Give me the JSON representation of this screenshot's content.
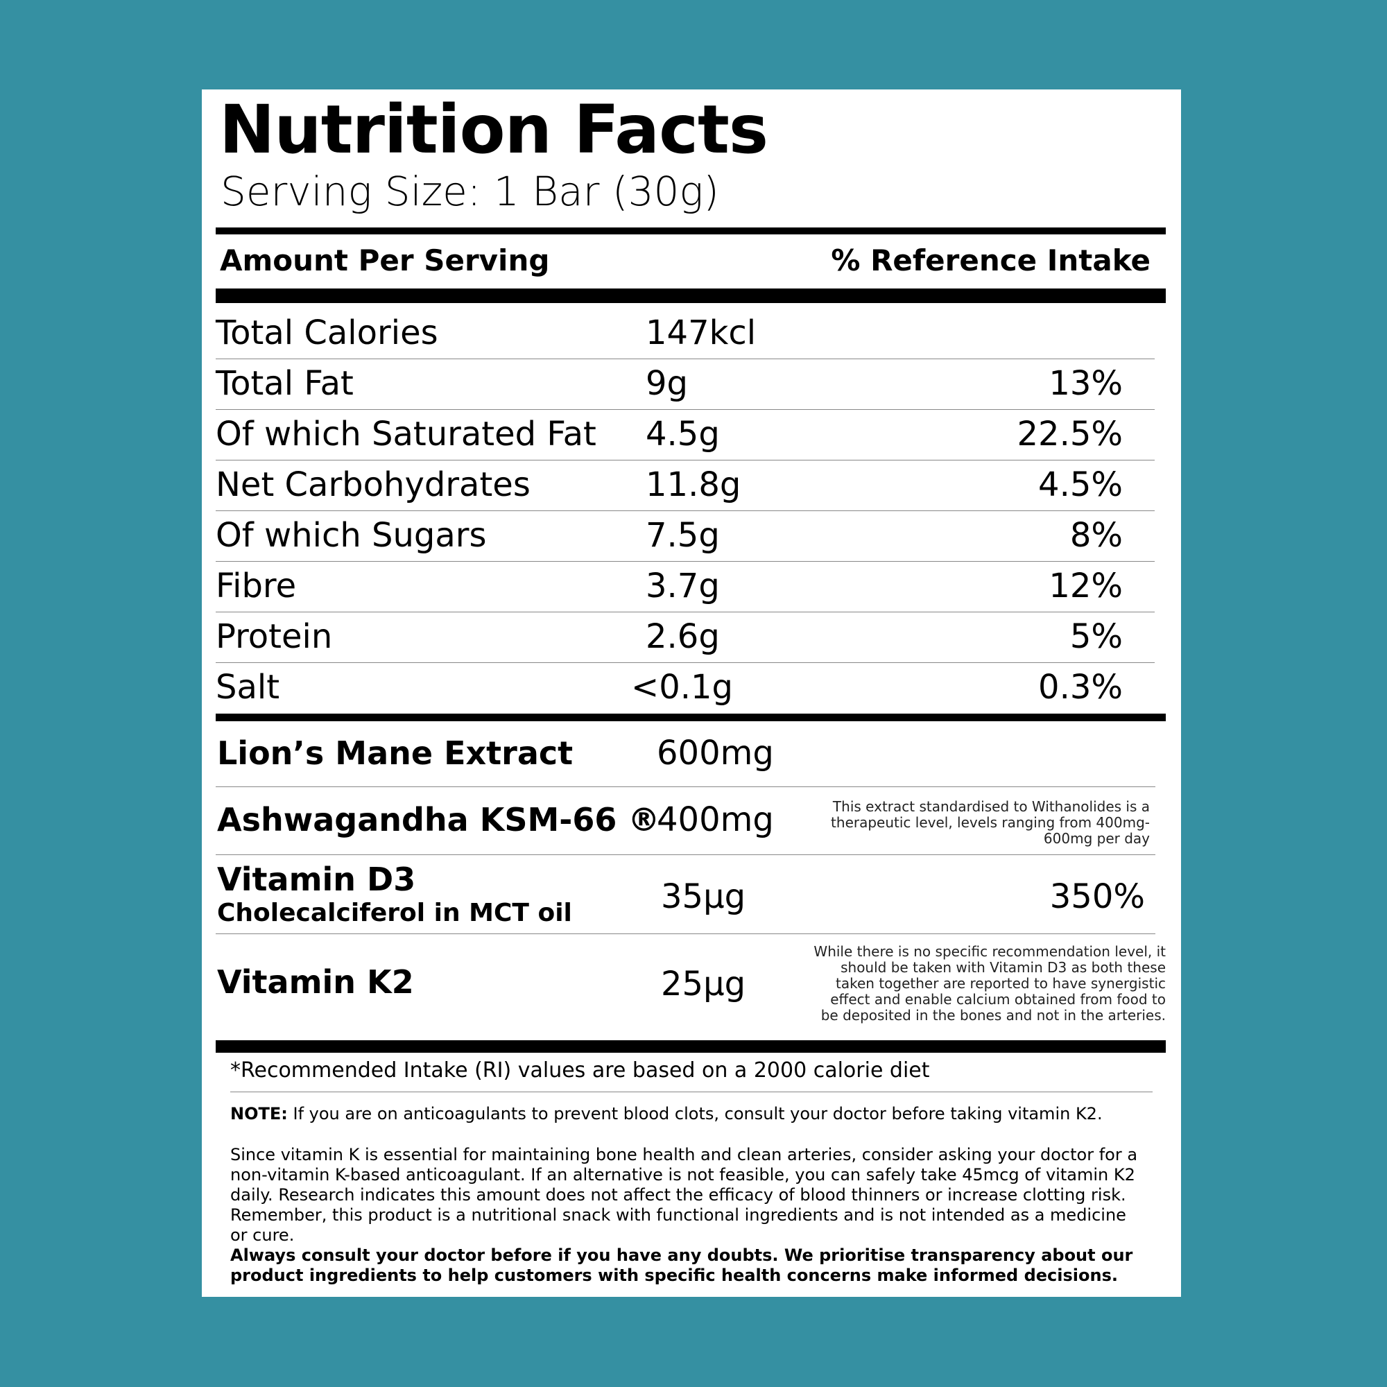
{
  "header": {
    "title": "Nutrition Facts",
    "serving": "Serving Size: 1 Bar (30g)"
  },
  "table": {
    "header": [
      "Amount Per Serving",
      "% Reference Intake"
    ],
    "rows": [
      {
        "name": "Total Calories",
        "amount": "147kcl"
      },
      {
        "name": "Total Fat",
        "amount": "9g",
        "ri": "13%"
      },
      {
        "name": "Of which Saturated Fat",
        "amount": "4.5g",
        "ri": "22.5%"
      },
      {
        "name": "Net Carbohydrates",
        "amount": "11.8g",
        "ri": "4.5%"
      },
      {
        "name": "Of which Sugars",
        "amount": "7.5g",
        "ri": "8%"
      },
      {
        "name": "Fibre",
        "amount": "3.7g",
        "ri": "12%"
      },
      {
        "name": "Protein",
        "amount": "2.6g",
        "ri": "5%"
      },
      {
        "name": "Salt",
        "amount": "<0.1g",
        "ri": "0.3%"
      }
    ],
    "supplements": [
      {
        "name": "Lion’s Mane Extract",
        "amount": "600mg"
      },
      {
        "name": "Ashwagandha KSM-66 ®",
        "amount": "400mg",
        "note": "This extract standardised to Withanolides is a therapeutic level, levels ranging from 400mg-600mg per day"
      },
      {
        "name": "Vitamin D3",
        "subname": "Cholecalciferol in MCT oil",
        "amount": "35μg",
        "ri": "350%"
      },
      {
        "name": "Vitamin K2",
        "amount": "25μg",
        "note": "While there is no specific recommendation level, it should be taken with Vitamin D3 as both these taken together are reported to have synergistic effect and enable calcium obtained from food to be deposited in the bones and not in the arteries."
      }
    ]
  },
  "footer": {
    "footnote": "*Recommended Intake (RI) values are based on a 2000 calorie diet",
    "note_label": "NOTE:",
    "note_text": "If you are on anticoagulants to prevent blood clots, consult your doctor before taking vitamin K2.",
    "paragraph": "Since vitamin K is essential for maintaining bone health and clean arteries, consider asking your doctor for a non-vitamin K-based anticoagulant. If an alternative is not feasible, you can safely take 45mcg of vitamin K2 daily. Research indicates this amount does not affect the efficacy of blood thinners or increase clotting risk. Remember, this product is a nutritional snack with functional ingredients and is not intended as a medicine or cure.",
    "bold": "Always consult your doctor before if you have any doubts. We prioritise transparency about our product ingredients to help customers with specific health concerns make informed decisions."
  }
}
